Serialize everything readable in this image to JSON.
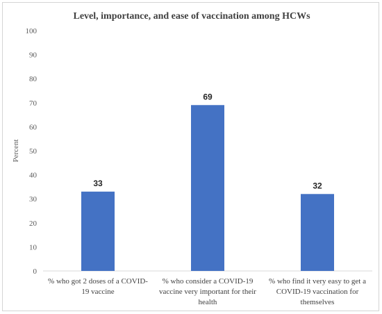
{
  "chart_data": {
    "type": "bar",
    "title": "Level, importance, and ease of vaccination among HCWs",
    "xlabel": "",
    "ylabel": "Percent",
    "ylim": [
      0,
      100
    ],
    "yticks": [
      0,
      10,
      20,
      30,
      40,
      50,
      60,
      70,
      80,
      90,
      100
    ],
    "grid": false,
    "legend": "none",
    "bar_color": "#4472c4",
    "categories": [
      [
        "% who got 2 doses of a COVID-",
        "19 vaccine"
      ],
      [
        "% who consider a COVID-19",
        "vaccine very important for their",
        "health"
      ],
      [
        "% who find it very easy to get a",
        "COVID-19 vaccination for",
        "themselves"
      ]
    ],
    "values": [
      33,
      69,
      32
    ],
    "data_labels": [
      "33",
      "69",
      "32"
    ]
  }
}
